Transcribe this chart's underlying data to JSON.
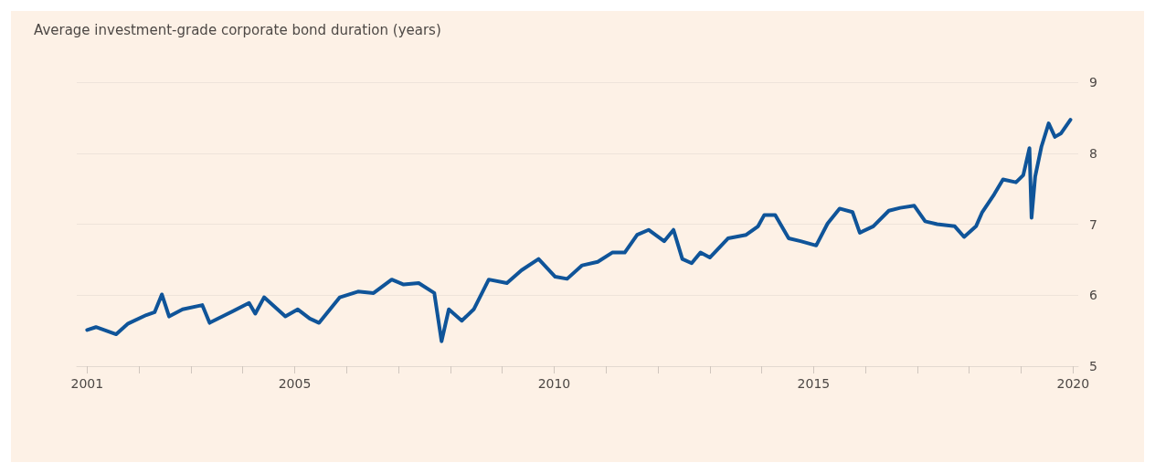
{
  "chart_data": {
    "type": "line",
    "title": "Average investment-grade corporate bond duration (years)",
    "x": [
      2001.0,
      2001.17,
      2001.56,
      2001.79,
      2002.14,
      2002.3,
      2002.44,
      2002.58,
      2002.84,
      2003.22,
      2003.36,
      2003.66,
      2004.12,
      2004.24,
      2004.41,
      2004.82,
      2005.06,
      2005.29,
      2005.47,
      2005.87,
      2006.22,
      2006.52,
      2006.87,
      2007.1,
      2007.39,
      2007.69,
      2007.83,
      2007.97,
      2008.22,
      2008.45,
      2008.74,
      2009.09,
      2009.37,
      2009.7,
      2010.02,
      2010.25,
      2010.54,
      2010.84,
      2011.12,
      2011.36,
      2011.6,
      2011.82,
      2012.12,
      2012.3,
      2012.47,
      2012.65,
      2012.82,
      2013.0,
      2013.35,
      2013.7,
      2013.93,
      2014.05,
      2014.26,
      2014.52,
      2014.75,
      2015.05,
      2015.27,
      2015.5,
      2015.75,
      2015.89,
      2016.15,
      2016.45,
      2016.67,
      2016.94,
      2017.15,
      2017.38,
      2017.72,
      2017.9,
      2018.13,
      2018.25,
      2018.48,
      2018.65,
      2018.9,
      2019.04,
      2019.16,
      2019.2,
      2019.27,
      2019.39,
      2019.53,
      2019.65,
      2019.77,
      2019.95
    ],
    "series": [
      {
        "color": "#0f5499",
        "values": [
          5.51,
          5.55,
          5.45,
          5.6,
          5.72,
          5.76,
          6.01,
          5.7,
          5.8,
          5.86,
          5.61,
          5.72,
          5.89,
          5.74,
          5.97,
          5.7,
          5.8,
          5.67,
          5.61,
          5.97,
          6.05,
          6.03,
          6.22,
          6.15,
          6.17,
          6.03,
          5.35,
          5.8,
          5.64,
          5.8,
          6.22,
          6.17,
          6.35,
          6.51,
          6.26,
          6.23,
          6.42,
          6.47,
          6.6,
          6.6,
          6.85,
          6.92,
          6.76,
          6.92,
          6.51,
          6.45,
          6.6,
          6.53,
          6.8,
          6.85,
          6.97,
          7.13,
          7.13,
          6.8,
          6.76,
          6.7,
          7.01,
          7.22,
          7.17,
          6.88,
          6.97,
          7.19,
          7.23,
          7.26,
          7.04,
          7.0,
          6.97,
          6.82,
          6.97,
          7.17,
          7.42,
          7.63,
          7.59,
          7.69,
          8.07,
          7.09,
          7.67,
          8.09,
          8.42,
          8.23,
          8.28,
          8.47
        ]
      }
    ],
    "xlim": [
      2000.8,
      2020.1
    ],
    "xticks": [
      2001,
      {
        "value": 2002,
        "label": null
      },
      {
        "value": 2003,
        "label": null
      },
      {
        "value": 2004,
        "label": null
      },
      2005,
      {
        "value": 2006,
        "label": null
      },
      {
        "value": 2007,
        "label": null
      },
      {
        "value": 2008,
        "label": null
      },
      {
        "value": 2009,
        "label": null
      },
      2010,
      {
        "value": 2011,
        "label": null
      },
      {
        "value": 2012,
        "label": null
      },
      {
        "value": 2013,
        "label": null
      },
      {
        "value": 2014,
        "label": null
      },
      2015,
      {
        "value": 2016,
        "label": null
      },
      {
        "value": 2017,
        "label": null
      },
      {
        "value": 2018,
        "label": null
      },
      {
        "value": 2019,
        "label": null
      },
      2020
    ],
    "ylim": [
      5,
      9
    ],
    "yticks": [
      5,
      6,
      7,
      8,
      9
    ],
    "grid": "y",
    "marker": "none",
    "line_style": "solid"
  }
}
